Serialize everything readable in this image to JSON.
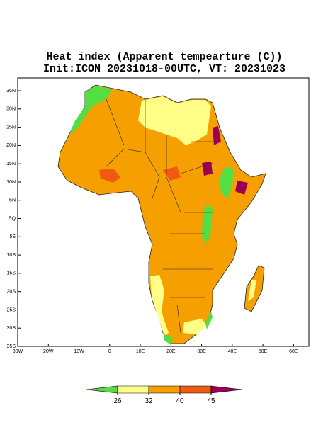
{
  "title": "Heat index (Apparent tempearture (C))",
  "subtitle": "Init:ICON 20231018-00UTC, VT: 20231023",
  "map": {
    "lonlim": [
      -30,
      65
    ],
    "latlim": [
      -35,
      38.5
    ],
    "latticks": [
      {
        "value": 35,
        "label": "35N"
      },
      {
        "value": 30,
        "label": "30N"
      },
      {
        "value": 25,
        "label": "25N"
      },
      {
        "value": 20,
        "label": "20N"
      },
      {
        "value": 15,
        "label": "15N"
      },
      {
        "value": 10,
        "label": "10N"
      },
      {
        "value": 5,
        "label": "5N"
      },
      {
        "value": 0,
        "label": "EQ"
      },
      {
        "value": -5,
        "label": "5S"
      },
      {
        "value": -10,
        "label": "10S"
      },
      {
        "value": -15,
        "label": "15S"
      },
      {
        "value": -20,
        "label": "20S"
      },
      {
        "value": -25,
        "label": "25S"
      },
      {
        "value": -30,
        "label": "30S"
      },
      {
        "value": -35,
        "label": "35S"
      }
    ],
    "lonticks": [
      {
        "value": -30,
        "label": "30W"
      },
      {
        "value": -20,
        "label": "20W"
      },
      {
        "value": -10,
        "label": "10W"
      },
      0,
      {
        "value": 10,
        "label": "10E"
      },
      {
        "value": 20,
        "label": "20E"
      },
      {
        "value": 30,
        "label": "30E"
      },
      {
        "value": 40,
        "label": "40E"
      },
      {
        "value": 50,
        "label": "50E"
      },
      {
        "value": 60,
        "label": "60E"
      }
    ]
  },
  "colorbar": {
    "ticks": [
      26,
      32,
      40,
      45
    ],
    "colors": [
      "#55dd44",
      "#ffff88",
      "#f5a000",
      "#f05a10",
      "#990055"
    ]
  }
}
